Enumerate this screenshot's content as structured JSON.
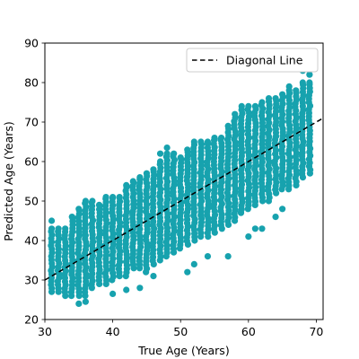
{
  "chart_data": {
    "type": "scatter",
    "xlabel": "True Age (Years)",
    "ylabel": "Predicted Age (Years)",
    "xlim": [
      30,
      71
    ],
    "ylim": [
      20,
      90
    ],
    "xticks": [
      30,
      40,
      50,
      60,
      70
    ],
    "yticks": [
      20,
      30,
      40,
      50,
      60,
      70,
      80,
      90
    ],
    "xtick_labels": [
      "30",
      "40",
      "50",
      "60",
      "70"
    ],
    "ytick_labels": [
      "20",
      "30",
      "40",
      "50",
      "60",
      "70",
      "80",
      "90"
    ],
    "grid": false,
    "legend": {
      "placement": "top-right",
      "entries": [
        "Diagonal Line"
      ]
    },
    "colors": {
      "points": "#17a2ae",
      "diagonal": "#000000"
    },
    "series": [
      {
        "kind": "points",
        "x_values": [
          31,
          32,
          33,
          34,
          35,
          36,
          37,
          38,
          39,
          40,
          41,
          42,
          43,
          44,
          45,
          46,
          47,
          48,
          49,
          50,
          51,
          52,
          53,
          54,
          55,
          56,
          57,
          58,
          59,
          60,
          61,
          62,
          63,
          64,
          65,
          66,
          67,
          68,
          69
        ],
        "y_min": [
          27,
          27,
          26,
          26,
          26,
          26,
          28,
          29,
          29,
          30,
          31,
          31,
          33,
          33,
          32,
          34,
          35,
          36,
          37,
          38,
          39,
          40,
          41,
          41,
          42,
          43,
          44,
          45,
          47,
          48,
          49,
          50,
          50,
          52,
          53,
          53,
          54,
          56,
          57
        ],
        "y_max": [
          43,
          43,
          43,
          46,
          48,
          50,
          50,
          49,
          51,
          51,
          51,
          54,
          55,
          56,
          57,
          58,
          60,
          62,
          62,
          61,
          63,
          65,
          65,
          65,
          66,
          66,
          69,
          72,
          74,
          74,
          74,
          75,
          76,
          76,
          77,
          78,
          78,
          80,
          80
        ],
        "outliers": [
          [
            31,
            45
          ],
          [
            35,
            24
          ],
          [
            36,
            24.5
          ],
          [
            40,
            26.5
          ],
          [
            42,
            27.5
          ],
          [
            44,
            28
          ],
          [
            46,
            31
          ],
          [
            47,
            62
          ],
          [
            48,
            63.5
          ],
          [
            51,
            32
          ],
          [
            52,
            34
          ],
          [
            54,
            36
          ],
          [
            57,
            36
          ],
          [
            60,
            41
          ],
          [
            61,
            43
          ],
          [
            62,
            43
          ],
          [
            64,
            46
          ],
          [
            65,
            48
          ],
          [
            66,
            79
          ],
          [
            68,
            83
          ],
          [
            69,
            82
          ]
        ]
      },
      {
        "kind": "line",
        "name": "Diagonal Line",
        "x": [
          30,
          71
        ],
        "y": [
          30,
          71
        ]
      }
    ]
  }
}
